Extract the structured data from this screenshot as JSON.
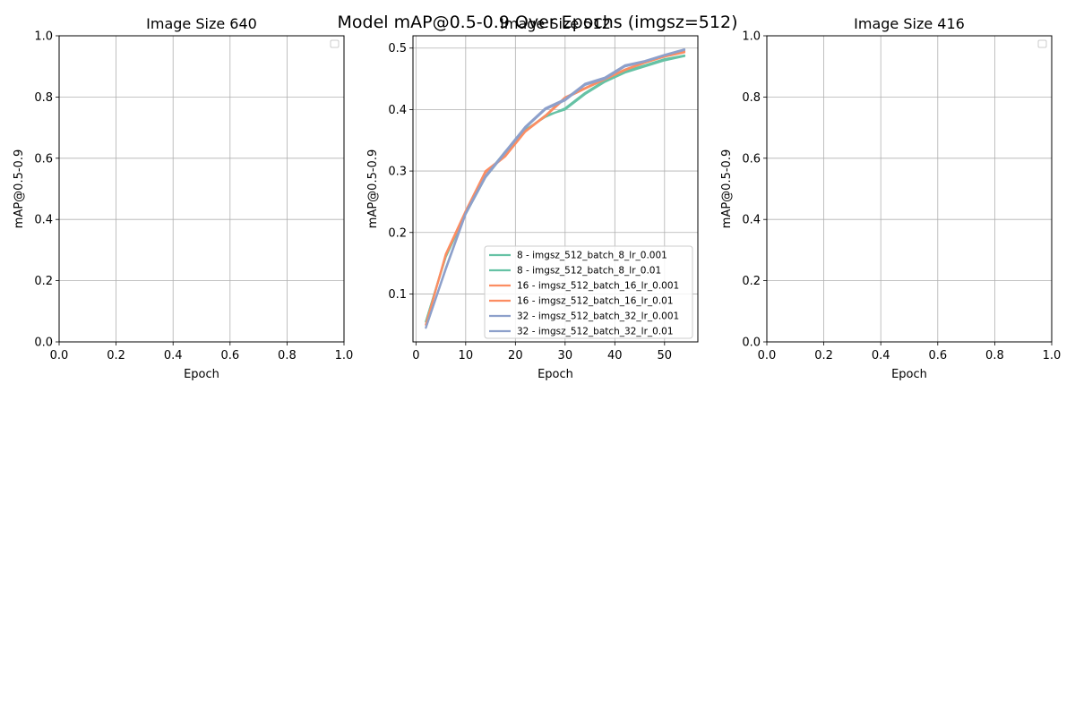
{
  "suptitle": "Model mAP@0.5-0.9 Over Epochs (imgsz=512)",
  "chart_data": [
    {
      "type": "line",
      "title": "Image Size 640",
      "xlabel": "Epoch",
      "ylabel": "mAP@0.5-0.9",
      "xlim": [
        0,
        1
      ],
      "ylim": [
        0,
        1
      ],
      "x_ticks": [
        "0.0",
        "0.2",
        "0.4",
        "0.6",
        "0.8",
        "1.0"
      ],
      "y_ticks": [
        "0.0",
        "0.2",
        "0.4",
        "0.6",
        "0.8",
        "1.0"
      ],
      "grid": true,
      "legend": "upper right (empty)",
      "series": []
    },
    {
      "type": "line",
      "title": "Image Size 512",
      "xlabel": "Epoch",
      "ylabel": "mAP@0.5-0.9",
      "xlim": [
        -0.6,
        56.7
      ],
      "ylim": [
        0.022,
        0.52
      ],
      "x_ticks": [
        "0",
        "10",
        "20",
        "30",
        "40",
        "50"
      ],
      "y_ticks": [
        "0.1",
        "0.2",
        "0.3",
        "0.4",
        "0.5"
      ],
      "grid": true,
      "legend": "lower right",
      "x": [
        2,
        6,
        10,
        14,
        18,
        22,
        26,
        30,
        34,
        38,
        42,
        46,
        50,
        54
      ],
      "series": [
        {
          "name": "8 - imgsz_512_batch_8_lr_0.001",
          "color": "#66c2a5",
          "values": [
            0.055,
            0.16,
            0.23,
            0.29,
            0.33,
            0.365,
            0.39,
            0.4,
            0.425,
            0.445,
            0.46,
            0.47,
            0.48,
            0.487
          ]
        },
        {
          "name": "8 - imgsz_512_batch_8_lr_0.01",
          "color": "#66c2a5",
          "values": [
            0.055,
            0.162,
            0.232,
            0.292,
            0.332,
            0.367,
            0.388,
            0.402,
            0.427,
            0.447,
            0.462,
            0.472,
            0.482,
            0.488
          ]
        },
        {
          "name": "16 - imgsz_512_batch_16_lr_0.001",
          "color": "#fc8d62",
          "values": [
            0.05,
            0.165,
            0.235,
            0.3,
            0.325,
            0.365,
            0.39,
            0.42,
            0.435,
            0.45,
            0.465,
            0.477,
            0.487,
            0.495
          ]
        },
        {
          "name": "16 - imgsz_512_batch_16_lr_0.01",
          "color": "#fc8d62",
          "values": [
            0.05,
            0.163,
            0.233,
            0.298,
            0.324,
            0.364,
            0.389,
            0.418,
            0.434,
            0.449,
            0.464,
            0.476,
            0.486,
            0.493
          ]
        },
        {
          "name": "32 - imgsz_512_batch_32_lr_0.001",
          "color": "#8da0cb",
          "values": [
            0.045,
            0.14,
            0.23,
            0.29,
            0.33,
            0.37,
            0.4,
            0.415,
            0.44,
            0.45,
            0.47,
            0.478,
            0.488,
            0.497
          ]
        },
        {
          "name": "32 - imgsz_512_batch_32_lr_0.01",
          "color": "#8da0cb",
          "values": [
            0.045,
            0.142,
            0.232,
            0.292,
            0.332,
            0.372,
            0.402,
            0.417,
            0.442,
            0.452,
            0.472,
            0.479,
            0.489,
            0.498
          ]
        }
      ]
    },
    {
      "type": "line",
      "title": "Image Size 416",
      "xlabel": "Epoch",
      "ylabel": "mAP@0.5-0.9",
      "xlim": [
        0,
        1
      ],
      "ylim": [
        0,
        1
      ],
      "x_ticks": [
        "0.0",
        "0.2",
        "0.4",
        "0.6",
        "0.8",
        "1.0"
      ],
      "y_ticks": [
        "0.0",
        "0.2",
        "0.4",
        "0.6",
        "0.8",
        "1.0"
      ],
      "grid": true,
      "legend": "upper right (empty)",
      "series": []
    }
  ]
}
